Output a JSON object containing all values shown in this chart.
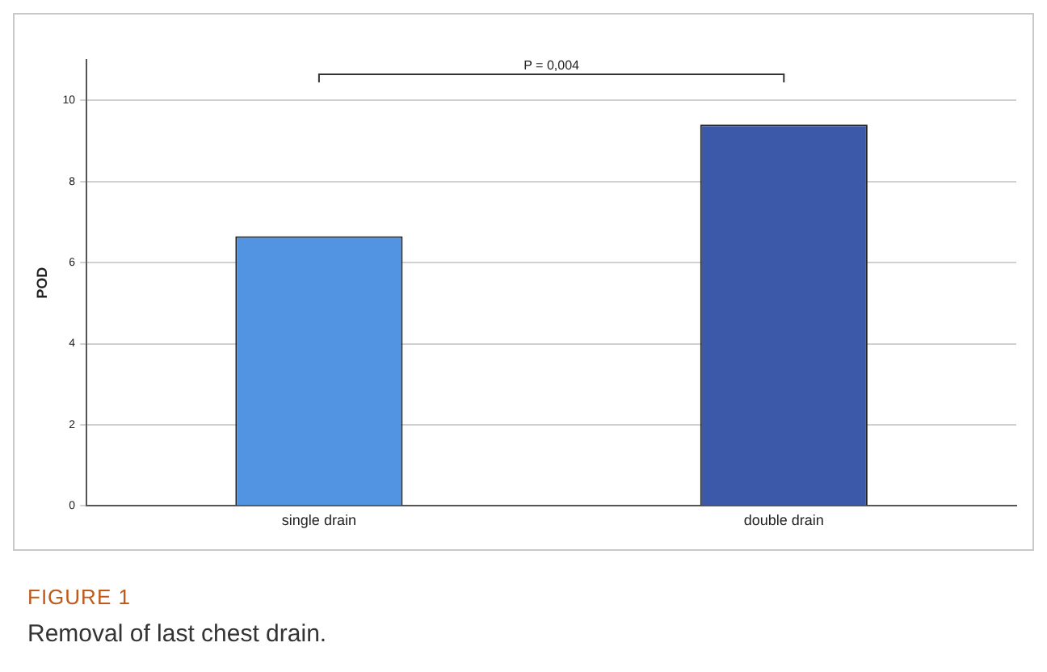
{
  "chart_data": {
    "type": "bar",
    "ylabel": "POD",
    "categories": [
      "single drain",
      "double drain"
    ],
    "values": [
      6.65,
      9.4
    ],
    "colors": [
      "#5294e2",
      "#3c58a8"
    ],
    "ylim": [
      0,
      11
    ],
    "yticks": [
      0,
      2,
      4,
      6,
      8,
      10
    ],
    "grid": "y",
    "legend": false,
    "annotations": [
      "P = 0,004",
      "FIGURE 1",
      "Removal of last chest drain."
    ]
  }
}
